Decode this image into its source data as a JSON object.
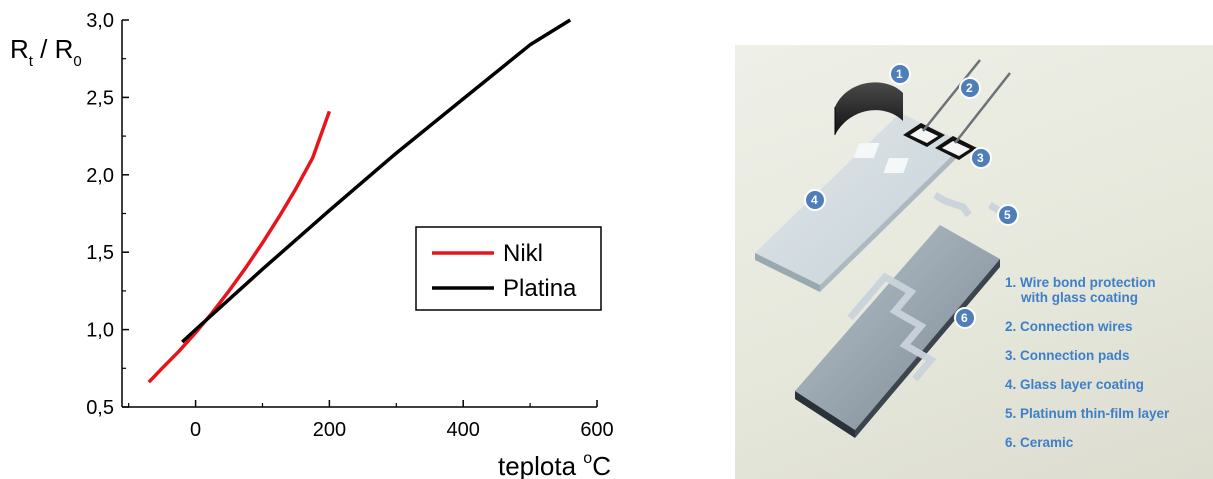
{
  "chart_data": {
    "type": "line",
    "xlabel_main": "teplota ",
    "xlabel_sup": "o",
    "xlabel_unit": "C",
    "ylabel_r1": "R",
    "ylabel_sub1": "t",
    "ylabel_sep": " / R",
    "ylabel_sub2": "0",
    "xlim": [
      -110,
      600
    ],
    "ylim": [
      0.5,
      3.0
    ],
    "x_ticks": [
      0,
      200,
      400,
      600
    ],
    "x_tick_labels": [
      "0",
      "200",
      "400",
      "600"
    ],
    "y_ticks": [
      0.5,
      1.0,
      1.5,
      2.0,
      2.5,
      3.0
    ],
    "y_tick_labels": [
      "0,5",
      "1,0",
      "1,5",
      "2,0",
      "2,5",
      "3,0"
    ],
    "grid": false,
    "legend_position": "right-center",
    "series": [
      {
        "name": "Nikl",
        "color": "#e8141b",
        "x": [
          -70,
          -50,
          -25,
          0,
          25,
          50,
          75,
          100,
          125,
          150,
          175,
          200
        ],
        "y": [
          0.66,
          0.75,
          0.86,
          0.98,
          1.11,
          1.25,
          1.4,
          1.56,
          1.73,
          1.91,
          2.11,
          2.41
        ]
      },
      {
        "name": "Platina",
        "color": "#000000",
        "x": [
          -20,
          0,
          100,
          200,
          300,
          400,
          500,
          560
        ],
        "y": [
          0.92,
          1.0,
          1.39,
          1.77,
          2.14,
          2.49,
          2.84,
          3.0
        ]
      }
    ]
  },
  "diagram": {
    "badges": [
      "1",
      "2",
      "3",
      "4",
      "5",
      "6"
    ],
    "legend_items": [
      {
        "line1": "1. Wire bond protection",
        "line2": "with glass coating"
      },
      {
        "line1": "2. Connection wires"
      },
      {
        "line1": "3. Connection pads"
      },
      {
        "line1": "4. Glass layer coating"
      },
      {
        "line1": "5. Platinum thin-film layer"
      },
      {
        "line1": "6. Ceramic"
      }
    ],
    "colors": {
      "badge": "#4f7fb8",
      "legend_text": "#3d7fc9"
    }
  }
}
